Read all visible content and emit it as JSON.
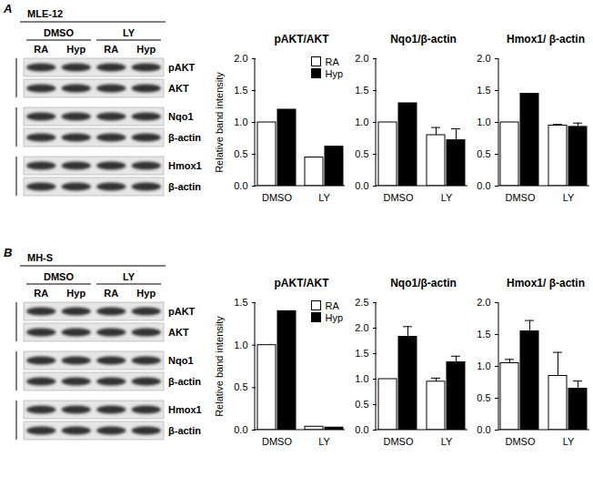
{
  "panels": [
    {
      "label": "A",
      "cell_line": "MLE-12",
      "treatments": [
        "DMSO",
        "LY"
      ],
      "lanes": [
        "RA",
        "Hyp",
        "RA",
        "Hyp"
      ],
      "blots": [
        [
          "pAKT",
          "AKT"
        ],
        [
          "Nqo1",
          "β-actin"
        ],
        [
          "Hmox1",
          "β-actin"
        ]
      ]
    },
    {
      "label": "B",
      "cell_line": "MH-S",
      "treatments": [
        "DMSO",
        "LY"
      ],
      "lanes": [
        "RA",
        "Hyp",
        "RA",
        "Hyp"
      ],
      "blots": [
        [
          "pAKT",
          "AKT"
        ],
        [
          "Nqo1",
          "β-actin"
        ],
        [
          "Hmox1",
          "β-actin"
        ]
      ]
    }
  ],
  "chart_data": [
    {
      "type": "bar",
      "title": "pAKT/AKT",
      "y_label": "Relative band intensity",
      "categories": [
        "DMSO",
        "LY"
      ],
      "series": [
        {
          "name": "RA",
          "color": "#ffffff",
          "values": [
            1.0,
            0.45
          ],
          "errors": [
            null,
            null
          ]
        },
        {
          "name": "Hyp",
          "color": "#000000",
          "values": [
            1.2,
            0.62
          ],
          "errors": [
            null,
            null
          ]
        }
      ],
      "ylim": [
        0,
        2
      ],
      "yticks": [
        {
          "value": 0,
          "label": "0.0"
        },
        0.5,
        {
          "value": 1,
          "label": "1.0"
        },
        1.5,
        {
          "value": 2,
          "label": "2.0"
        }
      ],
      "legend": "top-right"
    },
    {
      "type": "bar",
      "title": "Nqo1/β-actin",
      "categories": [
        "DMSO",
        "LY"
      ],
      "series": [
        {
          "name": "RA",
          "color": "#ffffff",
          "values": [
            1.0,
            0.8
          ],
          "errors": [
            null,
            0.12
          ]
        },
        {
          "name": "Hyp",
          "color": "#000000",
          "values": [
            1.3,
            0.72
          ],
          "errors": [
            null,
            0.18
          ]
        }
      ],
      "ylim": [
        0,
        2
      ],
      "yticks": [
        {
          "value": 0,
          "label": "0.0"
        },
        0.5,
        {
          "value": 1,
          "label": "1.0"
        },
        1.5,
        {
          "value": 2,
          "label": "2.0"
        }
      ]
    },
    {
      "type": "bar",
      "title": "Hmox1/ β-actin",
      "categories": [
        "DMSO",
        "LY"
      ],
      "series": [
        {
          "name": "RA",
          "color": "#ffffff",
          "values": [
            1.0,
            0.95
          ],
          "errors": [
            null,
            0.02
          ]
        },
        {
          "name": "Hyp",
          "color": "#000000",
          "values": [
            1.45,
            0.93
          ],
          "errors": [
            null,
            0.06
          ]
        }
      ],
      "ylim": [
        0,
        2
      ],
      "yticks": [
        {
          "value": 0,
          "label": "0.0"
        },
        0.5,
        {
          "value": 1,
          "label": "1.0"
        },
        1.5,
        {
          "value": 2,
          "label": "2.0"
        }
      ]
    },
    {
      "type": "bar",
      "title": "pAKT/AKT",
      "y_label": "Relative band intensity",
      "categories": [
        "DMSO",
        "LY"
      ],
      "series": [
        {
          "name": "RA",
          "color": "#ffffff",
          "values": [
            1.0,
            0.04
          ],
          "errors": [
            null,
            null
          ]
        },
        {
          "name": "Hyp",
          "color": "#000000",
          "values": [
            1.4,
            0.03
          ],
          "errors": [
            null,
            null
          ]
        }
      ],
      "ylim": [
        0,
        1.5
      ],
      "yticks": [
        {
          "value": 0,
          "label": "0.0"
        },
        0.5,
        {
          "value": 1,
          "label": "1.0"
        },
        1.5
      ],
      "legend": "top-right"
    },
    {
      "type": "bar",
      "title": "Nqo1/β-actin",
      "categories": [
        "DMSO",
        "LY"
      ],
      "series": [
        {
          "name": "RA",
          "color": "#ffffff",
          "values": [
            1.0,
            0.95
          ],
          "errors": [
            null,
            0.07
          ]
        },
        {
          "name": "Hyp",
          "color": "#000000",
          "values": [
            1.83,
            1.33
          ],
          "errors": [
            0.2,
            0.12
          ]
        }
      ],
      "ylim": [
        0,
        2.5
      ],
      "yticks": [
        {
          "value": 0,
          "label": "0.0"
        },
        0.5,
        {
          "value": 1,
          "label": "1.0"
        },
        1.5,
        {
          "value": 2,
          "label": "2.0"
        },
        2.5
      ]
    },
    {
      "type": "bar",
      "title": "Hmox1/ β-actin",
      "categories": [
        "DMSO",
        "LY"
      ],
      "series": [
        {
          "name": "RA",
          "color": "#ffffff",
          "values": [
            1.05,
            0.85
          ],
          "errors": [
            0.06,
            0.37
          ]
        },
        {
          "name": "Hyp",
          "color": "#000000",
          "values": [
            1.55,
            0.65
          ],
          "errors": [
            0.17,
            0.12
          ]
        }
      ],
      "ylim": [
        0,
        2
      ],
      "yticks": [
        {
          "value": 0,
          "label": "0.0"
        },
        0.5,
        {
          "value": 1,
          "label": "1.0"
        },
        1.5,
        {
          "value": 2,
          "label": "2.0"
        }
      ]
    }
  ]
}
